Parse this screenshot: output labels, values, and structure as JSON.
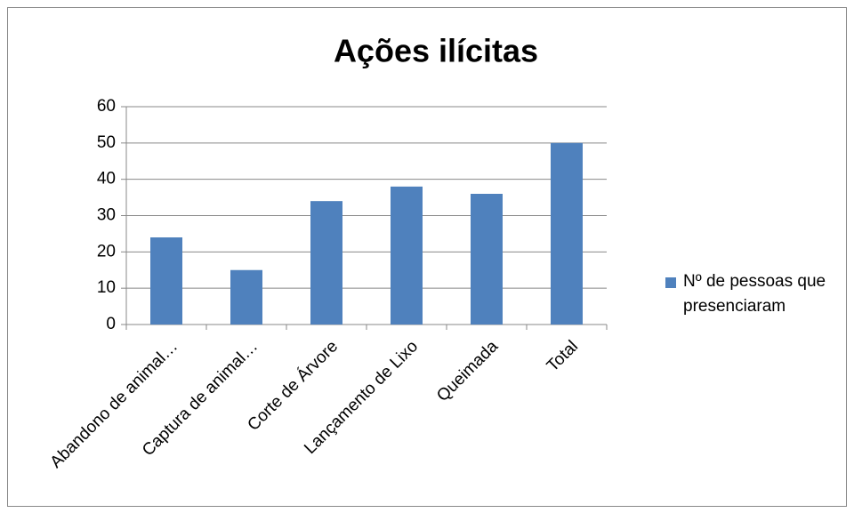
{
  "chart_data": {
    "type": "bar",
    "title": "Ações ilícitas",
    "categories": [
      "Abandono de animal…",
      "Captura de animal…",
      "Corte de Árvore",
      "Lançamento de Lixo",
      "Queimada",
      "Total"
    ],
    "series": [
      {
        "name": "Nº de pessoas que presenciaram",
        "color": "#4f81bd",
        "values": [
          24,
          15,
          34,
          38,
          36,
          50
        ]
      }
    ],
    "ylim": [
      0,
      60
    ],
    "yticks": [
      0,
      10,
      20,
      30,
      40,
      50,
      60
    ],
    "grid": true,
    "legend": "right"
  }
}
